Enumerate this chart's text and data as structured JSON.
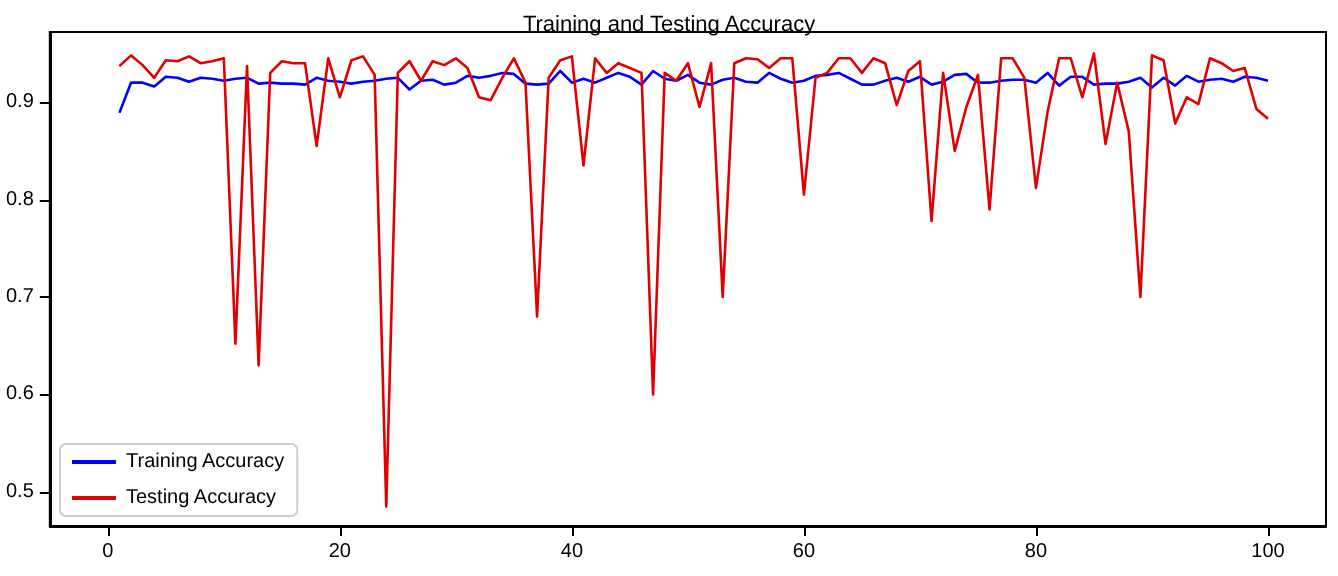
{
  "chart_data": {
    "type": "line",
    "title": "Training and Testing Accuracy",
    "x": [
      1,
      2,
      3,
      4,
      5,
      6,
      7,
      8,
      9,
      10,
      11,
      12,
      13,
      14,
      15,
      16,
      17,
      18,
      19,
      20,
      21,
      22,
      23,
      24,
      25,
      26,
      27,
      28,
      29,
      30,
      31,
      32,
      33,
      34,
      35,
      36,
      37,
      38,
      39,
      40,
      41,
      42,
      43,
      44,
      45,
      46,
      47,
      48,
      49,
      50,
      51,
      52,
      53,
      54,
      55,
      56,
      57,
      58,
      59,
      60,
      61,
      62,
      63,
      64,
      65,
      66,
      67,
      68,
      69,
      70,
      71,
      72,
      73,
      74,
      75,
      76,
      77,
      78,
      79,
      80,
      81,
      82,
      83,
      84,
      85,
      86,
      87,
      88,
      89,
      90,
      91,
      92,
      93,
      94,
      95,
      96,
      97,
      98,
      99,
      100
    ],
    "series": [
      {
        "name": "Training Accuracy",
        "color": "#0000ff",
        "values": [
          0.889,
          0.92,
          0.92,
          0.916,
          0.926,
          0.925,
          0.921,
          0.925,
          0.924,
          0.922,
          0.924,
          0.925,
          0.919,
          0.92,
          0.919,
          0.919,
          0.918,
          0.925,
          0.922,
          0.921,
          0.919,
          0.921,
          0.922,
          0.924,
          0.925,
          0.913,
          0.922,
          0.923,
          0.918,
          0.92,
          0.927,
          0.925,
          0.927,
          0.93,
          0.929,
          0.919,
          0.918,
          0.919,
          0.932,
          0.92,
          0.924,
          0.92,
          0.925,
          0.93,
          0.926,
          0.918,
          0.932,
          0.924,
          0.922,
          0.928,
          0.92,
          0.918,
          0.923,
          0.925,
          0.921,
          0.92,
          0.93,
          0.924,
          0.92,
          0.922,
          0.927,
          0.928,
          0.93,
          0.924,
          0.918,
          0.918,
          0.922,
          0.925,
          0.921,
          0.926,
          0.918,
          0.921,
          0.928,
          0.929,
          0.92,
          0.92,
          0.922,
          0.923,
          0.923,
          0.92,
          0.93,
          0.917,
          0.926,
          0.926,
          0.918,
          0.919,
          0.919,
          0.921,
          0.925,
          0.915,
          0.925,
          0.917,
          0.927,
          0.921,
          0.923,
          0.924,
          0.921,
          0.926,
          0.925,
          0.922
        ]
      },
      {
        "name": "Testing Accuracy",
        "color": "#e00000",
        "values": [
          0.937,
          0.948,
          0.938,
          0.925,
          0.943,
          0.942,
          0.947,
          0.94,
          0.942,
          0.945,
          0.652,
          0.937,
          0.63,
          0.93,
          0.942,
          0.94,
          0.94,
          0.855,
          0.945,
          0.905,
          0.943,
          0.947,
          0.928,
          0.485,
          0.93,
          0.942,
          0.922,
          0.942,
          0.938,
          0.945,
          0.935,
          0.905,
          0.902,
          0.925,
          0.945,
          0.92,
          0.68,
          0.925,
          0.943,
          0.947,
          0.835,
          0.945,
          0.93,
          0.94,
          0.935,
          0.93,
          0.6,
          0.93,
          0.922,
          0.94,
          0.895,
          0.94,
          0.7,
          0.94,
          0.945,
          0.944,
          0.935,
          0.945,
          0.945,
          0.805,
          0.925,
          0.93,
          0.945,
          0.945,
          0.93,
          0.945,
          0.94,
          0.897,
          0.932,
          0.942,
          0.778,
          0.93,
          0.85,
          0.895,
          0.928,
          0.79,
          0.945,
          0.945,
          0.925,
          0.812,
          0.89,
          0.945,
          0.945,
          0.905,
          0.95,
          0.857,
          0.92,
          0.87,
          0.7,
          0.948,
          0.943,
          0.878,
          0.905,
          0.898,
          0.945,
          0.94,
          0.932,
          0.935,
          0.893,
          0.883
        ]
      }
    ],
    "xlim": [
      -5,
      105
    ],
    "xticks": [
      0,
      20,
      40,
      60,
      80,
      100
    ],
    "ylim": [
      0.465,
      0.972
    ],
    "yticks": [
      {
        "value": 0.5,
        "label": "0.5"
      },
      {
        "value": 0.6,
        "label": "0.6"
      },
      {
        "value": 0.7,
        "label": "0.7"
      },
      {
        "value": 0.8,
        "label": "0.8"
      },
      {
        "value": 0.9,
        "label": "0.9"
      }
    ],
    "legend": "bottom left",
    "grid": false
  }
}
